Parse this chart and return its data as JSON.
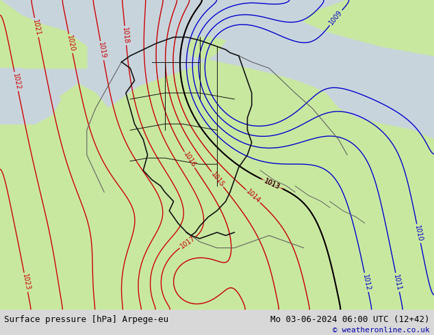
{
  "title_left": "Surface pressure [hPa] Arpege-eu",
  "title_right": "Mo 03-06-2024 06:00 UTC (12+42)",
  "copyright": "© weatheronline.co.uk",
  "bg_color": "#c8d8c8",
  "sea_color_left": "#c8d4dc",
  "sea_color_top": "#c8d4dc",
  "land_color": "#c8e8a0",
  "border_color": "#111111",
  "red_contour_color": "#cc0000",
  "blue_contour_color": "#0000cc",
  "black_contour_color": "#000000",
  "gray_contour_color": "#888888",
  "bottom_bar_color": "#d8d8d8",
  "bottom_bar_height": 0.075,
  "label_fontsize": 7,
  "title_fontsize": 9,
  "copyright_fontsize": 8
}
